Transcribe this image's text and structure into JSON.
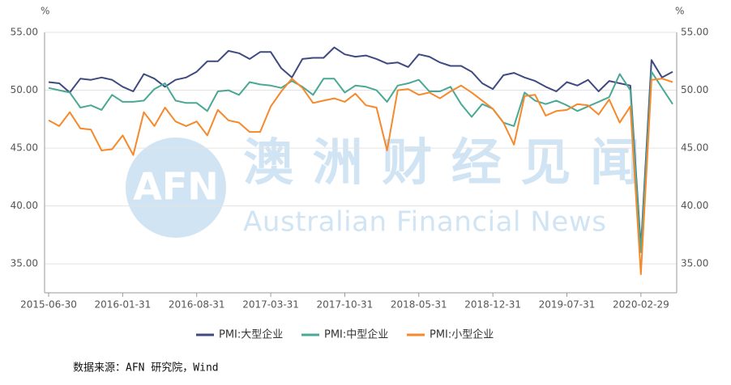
{
  "chart_data": {
    "type": "line",
    "watermark": {
      "logo": "AFN",
      "title": "澳洲财经见闻",
      "subtitle": "Australian Financial News"
    },
    "y_unit": "%",
    "y2_unit": "%",
    "source": "数据来源：AFN 研究院，Wind",
    "categories": [
      "2015-06-30",
      null,
      null,
      null,
      null,
      null,
      null,
      "2016-01-31",
      null,
      null,
      null,
      null,
      null,
      null,
      "2016-08-31",
      null,
      null,
      null,
      null,
      null,
      null,
      "2017-03-31",
      null,
      null,
      null,
      null,
      null,
      null,
      "2017-10-31",
      null,
      null,
      null,
      null,
      null,
      null,
      "2018-05-31",
      null,
      null,
      null,
      null,
      null,
      null,
      "2018-12-31",
      null,
      null,
      null,
      null,
      null,
      null,
      "2019-07-31",
      null,
      null,
      null,
      null,
      null,
      null,
      "2020-02-29",
      null,
      null,
      null
    ],
    "series": [
      {
        "name": "PMI:大型企业",
        "color": "#3f4a80",
        "values": [
          50.7,
          50.6,
          49.8,
          51.0,
          50.9,
          51.1,
          50.9,
          50.3,
          49.9,
          51.4,
          51.0,
          50.3,
          50.9,
          51.1,
          51.6,
          52.5,
          52.5,
          53.4,
          53.2,
          52.7,
          53.3,
          53.3,
          51.9,
          51.1,
          52.7,
          52.8,
          52.8,
          53.7,
          53.1,
          52.9,
          53.0,
          52.7,
          52.3,
          52.4,
          52.0,
          53.1,
          52.9,
          52.4,
          52.1,
          52.1,
          51.6,
          50.6,
          50.1,
          51.3,
          51.5,
          51.1,
          50.8,
          50.3,
          49.9,
          50.7,
          50.4,
          50.9,
          49.9,
          50.8,
          50.6,
          50.4,
          36.4,
          52.6,
          51.1,
          51.6
        ]
      },
      {
        "name": "PMI:中型企业",
        "color": "#4aa894",
        "values": [
          50.2,
          50.0,
          49.8,
          48.5,
          48.7,
          48.3,
          49.6,
          49.0,
          49.0,
          49.1,
          50.1,
          50.6,
          49.1,
          48.9,
          48.9,
          48.2,
          49.9,
          50.0,
          49.6,
          50.7,
          50.5,
          50.4,
          50.2,
          50.8,
          50.3,
          49.6,
          51.0,
          51.0,
          49.8,
          50.4,
          50.3,
          50.0,
          49.0,
          50.4,
          50.6,
          50.9,
          49.9,
          49.9,
          50.3,
          48.8,
          47.7,
          48.8,
          48.4,
          47.2,
          46.9,
          49.8,
          49.1,
          48.8,
          49.1,
          48.7,
          48.2,
          48.6,
          49.0,
          49.4,
          51.4,
          50.0,
          36.0,
          51.6,
          50.2,
          48.8
        ]
      },
      {
        "name": "PMI:小型企业",
        "color": "#f5892b",
        "values": [
          47.4,
          46.9,
          48.1,
          46.7,
          46.6,
          44.8,
          44.9,
          46.1,
          44.4,
          48.1,
          46.9,
          48.5,
          47.3,
          46.9,
          47.3,
          46.1,
          48.3,
          47.4,
          47.2,
          46.4,
          46.4,
          48.6,
          49.9,
          51.0,
          50.2,
          48.9,
          49.1,
          49.3,
          49.0,
          49.7,
          48.7,
          48.5,
          44.8,
          50.0,
          50.1,
          49.6,
          49.8,
          49.3,
          49.9,
          50.4,
          49.8,
          49.1,
          48.4,
          47.2,
          45.3,
          49.5,
          49.6,
          47.8,
          48.2,
          48.3,
          48.8,
          48.7,
          47.9,
          49.2,
          47.2,
          48.6,
          34.1,
          50.9,
          51.0,
          50.7
        ]
      }
    ],
    "ylim": [
      32.5,
      55
    ],
    "yticks": [
      {
        "value": 35,
        "label": "35.00"
      },
      {
        "value": 40,
        "label": "40.00"
      },
      {
        "value": 45,
        "label": "45.00"
      },
      {
        "value": 50,
        "label": "50.00"
      },
      {
        "value": 55,
        "label": "55.00"
      }
    ],
    "y2lim": [
      32.5,
      55
    ],
    "y2ticks": [
      {
        "value": 35,
        "label": "35.00"
      },
      {
        "value": 40,
        "label": "40.00"
      },
      {
        "value": 45,
        "label": "45.00"
      },
      {
        "value": 50,
        "label": "50.00"
      },
      {
        "value": 55,
        "label": "55.00"
      }
    ],
    "grid": true,
    "legend": "bottom"
  }
}
